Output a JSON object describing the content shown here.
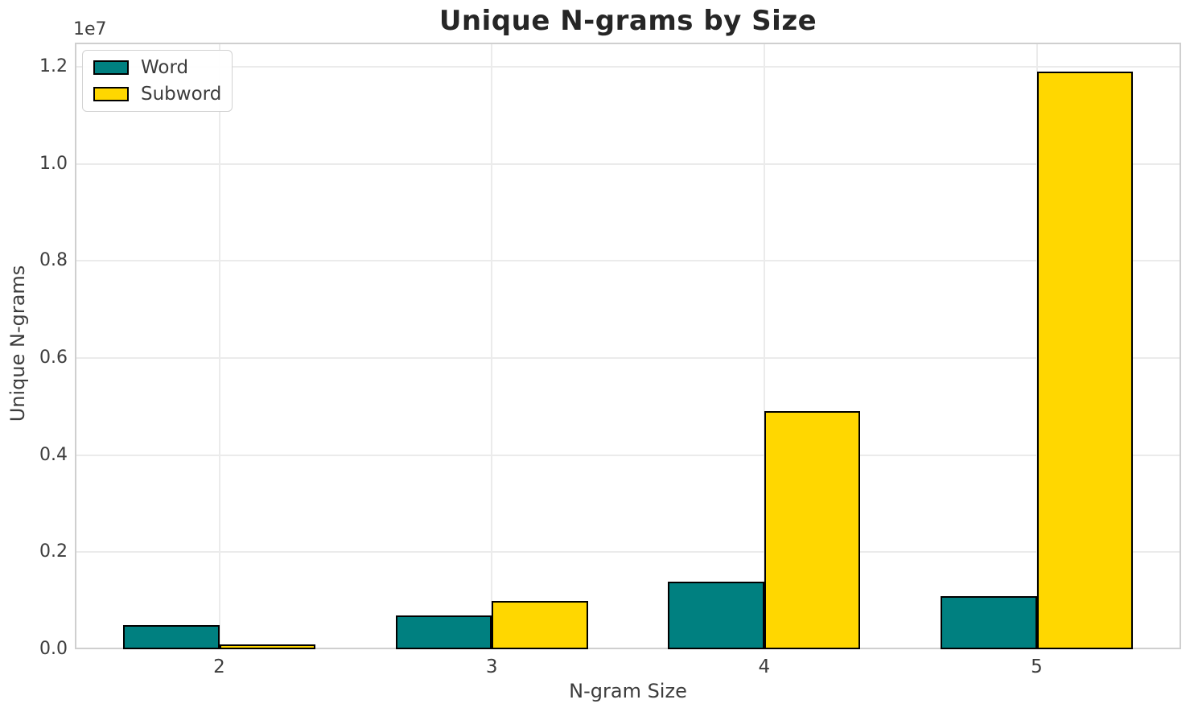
{
  "chart_data": {
    "type": "bar",
    "title": "Unique N-grams by Size",
    "xlabel": "N-gram Size",
    "ylabel": "Unique N-grams",
    "y_offset_text": "1e7",
    "categories": [
      "2",
      "3",
      "4",
      "5"
    ],
    "series": [
      {
        "name": "Word",
        "color": "#008080",
        "values": [
          500000,
          700000,
          1400000,
          1100000
        ]
      },
      {
        "name": "Subword",
        "color": "#FFD700",
        "values": [
          100000,
          1000000,
          4900000,
          11900000
        ]
      }
    ],
    "bar_edge_color": "#000000",
    "ylim": [
      0,
      12500000
    ],
    "yticks": [
      0,
      2000000,
      4000000,
      6000000,
      8000000,
      10000000,
      12000000
    ],
    "ytick_labels": [
      "0.0",
      "0.2",
      "0.4",
      "0.6",
      "0.8",
      "1.0",
      "1.2"
    ],
    "grid": true,
    "legend_position": "upper left"
  }
}
